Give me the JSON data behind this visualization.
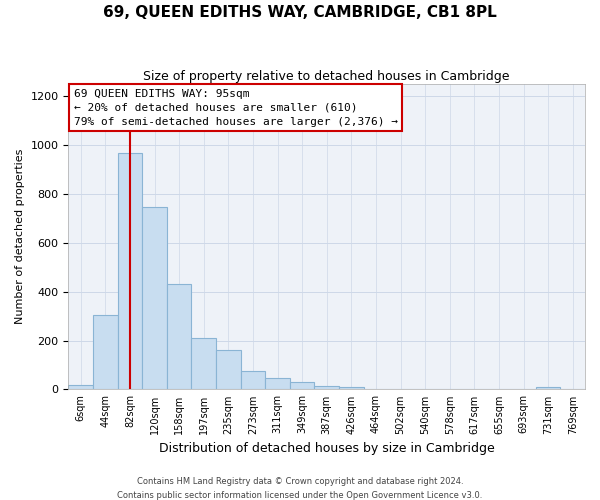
{
  "title": "69, QUEEN EDITHS WAY, CAMBRIDGE, CB1 8PL",
  "subtitle": "Size of property relative to detached houses in Cambridge",
  "xlabel": "Distribution of detached houses by size in Cambridge",
  "ylabel": "Number of detached properties",
  "bar_color": "#c8ddf0",
  "bar_edge_color": "#8ab4d4",
  "background_color": "#eef2f8",
  "tick_labels": [
    "6sqm",
    "44sqm",
    "82sqm",
    "120sqm",
    "158sqm",
    "197sqm",
    "235sqm",
    "273sqm",
    "311sqm",
    "349sqm",
    "387sqm",
    "426sqm",
    "464sqm",
    "502sqm",
    "540sqm",
    "578sqm",
    "617sqm",
    "655sqm",
    "693sqm",
    "731sqm",
    "769sqm"
  ],
  "bar_heights": [
    20,
    305,
    970,
    745,
    430,
    210,
    162,
    75,
    48,
    32,
    15,
    8,
    0,
    0,
    0,
    0,
    0,
    0,
    0,
    8,
    0
  ],
  "ylim": [
    0,
    1250
  ],
  "yticks": [
    0,
    200,
    400,
    600,
    800,
    1000,
    1200
  ],
  "property_line_x": 2,
  "property_line_color": "#cc0000",
  "annotation_text_line1": "69 QUEEN EDITHS WAY: 95sqm",
  "annotation_text_line2": "← 20% of detached houses are smaller (610)",
  "annotation_text_line3": "79% of semi-detached houses are larger (2,376) →",
  "footer_line1": "Contains HM Land Registry data © Crown copyright and database right 2024.",
  "footer_line2": "Contains public sector information licensed under the Open Government Licence v3.0.",
  "grid_color": "#cdd8e8"
}
